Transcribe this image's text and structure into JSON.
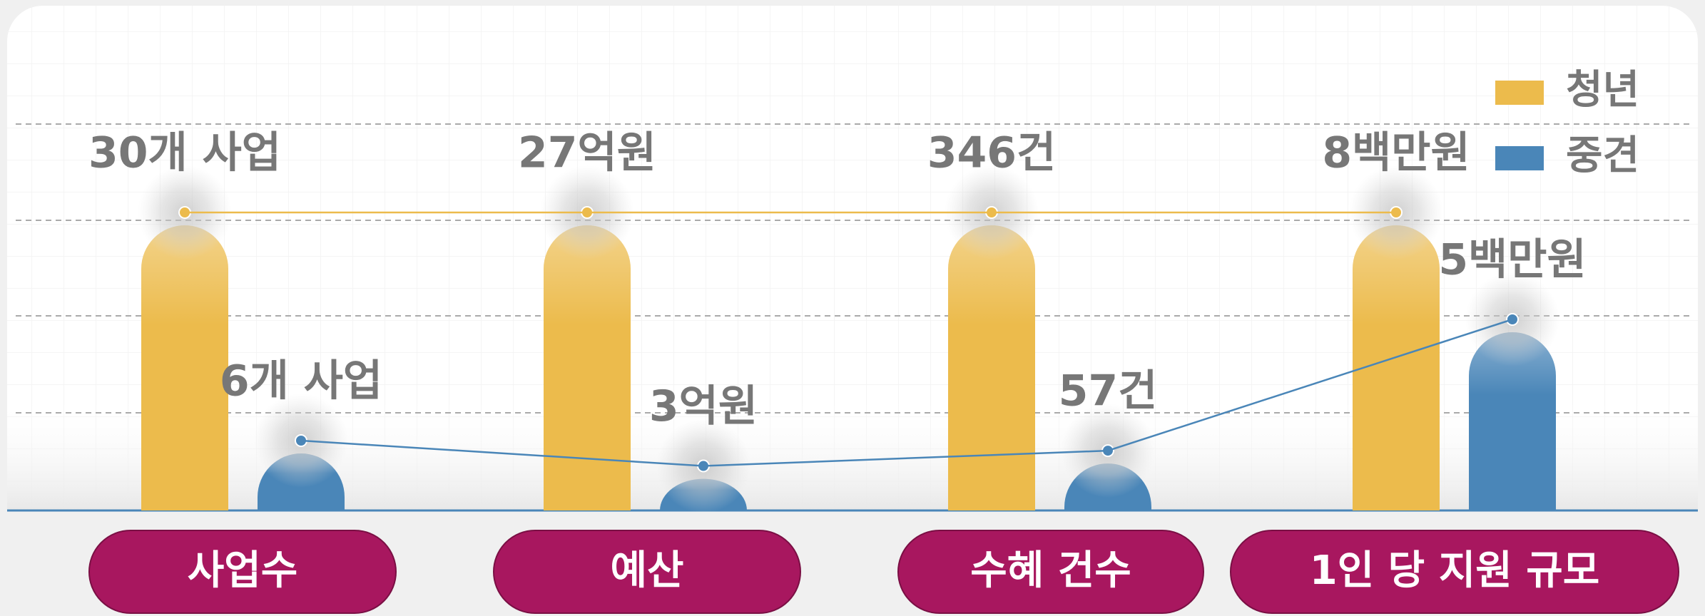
{
  "chart_data": {
    "type": "bar",
    "categories": [
      "사업수",
      "예산",
      "수혜 건수",
      "1인 당 지원 규모"
    ],
    "series": [
      {
        "name": "청년",
        "color": "#ecbb4c",
        "values": [
          30,
          27,
          346,
          8
        ],
        "value_labels": [
          "30개 사업",
          "27억원",
          "346건",
          "8백만원"
        ]
      },
      {
        "name": "중견",
        "color": "#4a86b8",
        "values": [
          6,
          3,
          57,
          5
        ],
        "value_labels": [
          "6개 사업",
          "3억원",
          "57건",
          "5백만원"
        ]
      }
    ],
    "legend": "top-right"
  }
}
